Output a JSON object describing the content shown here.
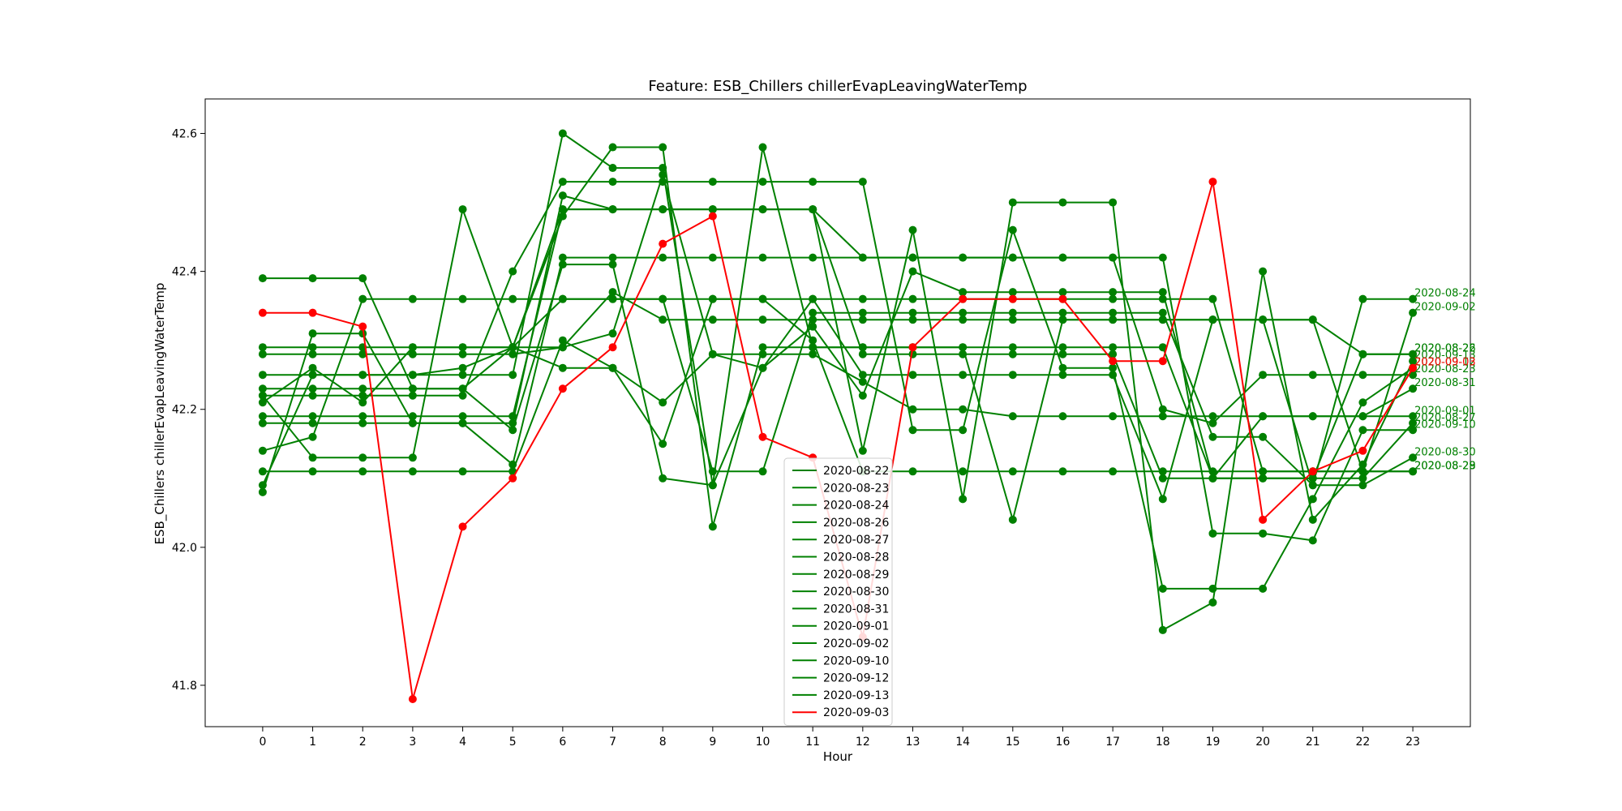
{
  "chart_data": {
    "type": "line",
    "title": "Feature: ESB_Chillers chillerEvapLeavingWaterTemp",
    "xlabel": "Hour",
    "ylabel": "ESB_Chillers chillerEvapLeavingWaterTemp",
    "x": [
      0,
      1,
      2,
      3,
      4,
      5,
      6,
      7,
      8,
      9,
      10,
      11,
      12,
      13,
      14,
      15,
      16,
      17,
      18,
      19,
      20,
      21,
      22,
      23
    ],
    "x_ticks": [
      "0",
      "1",
      "2",
      "3",
      "4",
      "5",
      "6",
      "7",
      "8",
      "9",
      "10",
      "11",
      "12",
      "13",
      "14",
      "15",
      "16",
      "17",
      "18",
      "19",
      "20",
      "21",
      "22",
      "23"
    ],
    "y_ticks": [
      "41.8",
      "42.0",
      "42.2",
      "42.4",
      "42.6"
    ],
    "ylim": [
      41.74,
      42.65
    ],
    "xlim": [
      -1.15,
      24.15
    ],
    "grid": false,
    "legend_placement": "bottom-center",
    "colors": {
      "normal": "#008000",
      "highlight": "#ff0000"
    },
    "series": [
      {
        "name": "2020-08-22",
        "color": "#008000",
        "values": [
          42.28,
          42.28,
          42.28,
          42.28,
          42.28,
          42.28,
          42.29,
          42.31,
          42.54,
          42.28,
          42.26,
          42.36,
          42.25,
          42.25,
          42.25,
          42.25,
          42.25,
          42.25,
          42.07,
          42.33,
          42.33,
          42.33,
          42.28,
          42.28
        ]
      },
      {
        "name": "2020-08-23",
        "color": "#008000",
        "values": [
          42.19,
          42.19,
          42.19,
          42.19,
          42.19,
          42.19,
          42.49,
          42.49,
          42.49,
          42.49,
          42.49,
          42.49,
          42.42,
          42.42,
          42.42,
          42.42,
          42.42,
          42.42,
          42.2,
          42.18,
          42.25,
          42.25,
          42.25,
          42.25
        ]
      },
      {
        "name": "2020-08-24",
        "color": "#008000",
        "values": [
          42.39,
          42.39,
          42.39,
          42.23,
          42.23,
          42.29,
          42.29,
          42.37,
          42.33,
          42.33,
          42.33,
          42.33,
          42.33,
          42.33,
          42.33,
          42.33,
          42.33,
          42.33,
          42.33,
          42.33,
          42.33,
          42.09,
          42.36,
          42.36
        ]
      },
      {
        "name": "2020-08-26",
        "color": "#008000",
        "values": [
          42.08,
          42.31,
          42.31,
          42.18,
          42.18,
          42.18,
          42.51,
          42.49,
          42.49,
          42.49,
          42.49,
          42.49,
          42.28,
          42.28,
          42.28,
          42.28,
          42.28,
          42.28,
          42.1,
          42.1,
          42.1,
          42.1,
          42.28,
          42.28
        ]
      },
      {
        "name": "2020-08-27",
        "color": "#008000",
        "values": [
          42.09,
          42.25,
          42.25,
          42.25,
          42.25,
          42.25,
          42.6,
          42.55,
          42.55,
          42.09,
          42.58,
          42.29,
          42.29,
          42.29,
          42.29,
          42.29,
          42.29,
          42.29,
          42.29,
          42.1,
          42.1,
          42.1,
          42.1,
          42.18
        ]
      },
      {
        "name": "2020-08-28",
        "color": "#008000",
        "values": [
          42.11,
          42.11,
          42.11,
          42.11,
          42.11,
          42.11,
          42.3,
          42.26,
          42.15,
          42.36,
          42.36,
          42.3,
          42.11,
          42.11,
          42.11,
          42.11,
          42.11,
          42.11,
          42.11,
          42.11,
          42.11,
          42.11,
          42.11,
          42.11
        ]
      },
      {
        "name": "2020-08-29",
        "color": "#008000",
        "values": [
          42.22,
          42.13,
          42.13,
          42.13,
          42.49,
          42.29,
          42.36,
          42.36,
          42.36,
          42.36,
          42.36,
          42.36,
          42.36,
          42.36,
          42.36,
          42.36,
          42.36,
          42.36,
          42.36,
          42.36,
          42.11,
          42.11,
          42.11,
          42.11
        ]
      },
      {
        "name": "2020-08-30",
        "color": "#008000",
        "values": [
          42.14,
          42.16,
          42.36,
          42.36,
          42.36,
          42.36,
          42.36,
          42.36,
          42.36,
          42.11,
          42.11,
          42.34,
          42.34,
          42.34,
          42.34,
          42.34,
          42.34,
          42.34,
          42.34,
          42.16,
          42.16,
          42.09,
          42.09,
          42.13
        ]
      },
      {
        "name": "2020-08-31",
        "color": "#008000",
        "values": [
          42.23,
          42.23,
          42.23,
          42.23,
          42.23,
          42.17,
          42.41,
          42.41,
          42.1,
          42.09,
          42.26,
          42.32,
          42.22,
          42.4,
          42.37,
          42.37,
          42.37,
          42.37,
          42.37,
          42.1,
          42.19,
          42.19,
          42.19,
          42.23
        ]
      },
      {
        "name": "2020-09-01",
        "color": "#008000",
        "values": [
          42.21,
          42.26,
          42.21,
          42.29,
          42.29,
          42.29,
          42.26,
          42.26,
          42.21,
          42.28,
          42.28,
          42.28,
          42.24,
          42.2,
          42.2,
          42.19,
          42.19,
          42.19,
          42.19,
          42.19,
          42.19,
          42.19,
          42.19,
          42.19
        ]
      },
      {
        "name": "2020-09-02",
        "color": "#008000",
        "values": [
          42.29,
          42.29,
          42.29,
          42.29,
          42.29,
          42.29,
          42.48,
          42.58,
          42.58,
          42.03,
          42.29,
          42.29,
          42.29,
          42.29,
          42.29,
          42.04,
          42.33,
          42.33,
          42.33,
          42.33,
          42.33,
          42.33,
          42.11,
          42.34
        ]
      },
      {
        "name": "2020-09-10",
        "color": "#008000",
        "values": [
          42.18,
          42.18,
          42.18,
          42.18,
          42.18,
          42.12,
          42.42,
          42.42,
          42.42,
          42.42,
          42.42,
          42.42,
          42.42,
          42.42,
          42.42,
          42.42,
          42.42,
          42.42,
          42.42,
          42.02,
          42.02,
          42.01,
          42.17,
          42.17
        ]
      },
      {
        "name": "2020-09-12",
        "color": "#008000",
        "values": [
          42.22,
          42.22,
          42.22,
          42.22,
          42.22,
          42.4,
          42.53,
          42.53,
          42.53,
          42.53,
          42.53,
          42.53,
          42.53,
          42.17,
          42.17,
          42.46,
          42.26,
          42.26,
          41.94,
          41.94,
          41.94,
          42.07,
          42.21,
          42.26
        ]
      },
      {
        "name": "2020-09-13",
        "color": "#008000",
        "values": [
          42.25,
          42.25,
          42.25,
          42.25,
          42.26,
          42.29,
          42.49,
          42.49,
          42.49,
          42.49,
          42.49,
          42.49,
          42.14,
          42.46,
          42.07,
          42.5,
          42.5,
          42.5,
          41.88,
          41.92,
          42.4,
          42.04,
          42.12,
          42.27
        ]
      },
      {
        "name": "2020-09-03",
        "color": "#ff0000",
        "values": [
          42.34,
          42.34,
          42.32,
          41.78,
          42.03,
          42.1,
          42.23,
          42.29,
          42.44,
          42.48,
          42.16,
          42.13,
          41.87,
          42.29,
          42.36,
          42.36,
          42.36,
          42.27,
          42.27,
          42.53,
          42.04,
          42.11,
          42.14,
          42.26
        ]
      }
    ]
  }
}
